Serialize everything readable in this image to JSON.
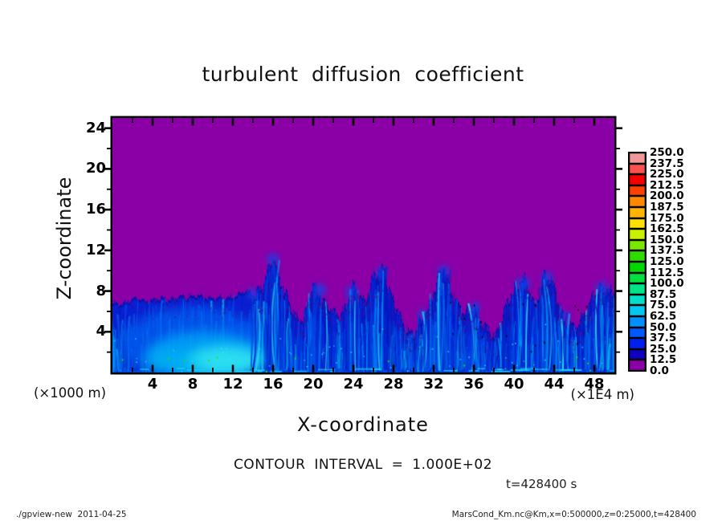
{
  "figure": {
    "title": "turbulent diffusion coefficient",
    "contour_note": "CONTOUR INTERVAL = 1.000E+02",
    "time_label": "t=428400 s",
    "footer_left": "./gpview-new  2011-04-25",
    "footer_right": "MarsCond_Km.nc@Km,x=0:500000,z=0:25000,t=428400"
  },
  "axes": {
    "x": {
      "label": "X-coordinate",
      "unit_label": "(×1E4 m)",
      "min": 0,
      "max": 50,
      "major_ticks": [
        4,
        8,
        12,
        16,
        20,
        24,
        28,
        32,
        36,
        40,
        44,
        48
      ],
      "minor_step": 2
    },
    "z": {
      "label": "Z-coordinate",
      "unit_label": "(×1000 m)",
      "min": 0,
      "max": 25,
      "major_ticks": [
        4,
        8,
        12,
        16,
        20,
        24
      ],
      "minor_step": 2
    }
  },
  "colorbar": {
    "labels_top_to_bottom": [
      "250.0",
      "237.5",
      "225.0",
      "212.5",
      "200.0",
      "187.5",
      "175.0",
      "162.5",
      "150.0",
      "137.5",
      "125.0",
      "112.5",
      "100.0",
      "87.5",
      "75.0",
      "62.5",
      "50.0",
      "37.5",
      "25.0",
      "12.5",
      "0.0"
    ],
    "colors_top_to_bottom": [
      "#f09898",
      "#ff5050",
      "#f80000",
      "#ff4000",
      "#ff8800",
      "#ffb400",
      "#ffe000",
      "#c8f000",
      "#78e800",
      "#30dc00",
      "#00d800",
      "#00e040",
      "#00e488",
      "#00e0c8",
      "#00c8f0",
      "#0090ff",
      "#0058ff",
      "#0020f0",
      "#1000c0",
      "#8a00a6"
    ]
  },
  "chart_data": {
    "type": "heatmap",
    "title": "turbulent diffusion coefficient",
    "xlabel": "X-coordinate",
    "ylabel": "Z-coordinate",
    "x_range_m": [
      0,
      500000
    ],
    "z_range_m": [
      0,
      25000
    ],
    "time_s": 428400,
    "contour_interval": 100,
    "value_min": 0.0,
    "value_max": 250.0,
    "level_step": 12.5,
    "field_description": "Turbulent diffusion coefficient near zero (purple) above z≈8×1000 m; convective boundary layer below with blue turbulent plumes and cyan high-diffusivity cores; smooth strong blob at x≈4-14, ragged plumes further right.",
    "boundary_layer_top_z": [
      6.6,
      6.9,
      7.1,
      7.2,
      7.0,
      7.3,
      7.1,
      7.4,
      7.5,
      7.3,
      7.4,
      7.2,
      7.5,
      7.8,
      7.9,
      8.3,
      11.6,
      8.0,
      5.8,
      5.2,
      8.6,
      7.0,
      5.5,
      6.3,
      8.4,
      7.0,
      9.2,
      10.3,
      6.8,
      4.5,
      3.8,
      5.2,
      8.2,
      10.4,
      7.4,
      5.5,
      6.6,
      4.2,
      3.7,
      5.8,
      8.2,
      9.2,
      6.4,
      9.8,
      8.2,
      5.2,
      4.1,
      6.1,
      7.5,
      8.8,
      7.2
    ],
    "boundary_x_step": 1,
    "plumes": [
      {
        "x": 13.9,
        "top": 8.2,
        "w": 0.9
      },
      {
        "x": 16.0,
        "top": 11.6,
        "w": 1.3
      },
      {
        "x": 20.6,
        "top": 8.6,
        "w": 1.5
      },
      {
        "x": 23.9,
        "top": 8.4,
        "w": 1.2
      },
      {
        "x": 26.8,
        "top": 10.3,
        "w": 1.1
      },
      {
        "x": 30.9,
        "top": 6.2,
        "w": 0.8
      },
      {
        "x": 33.0,
        "top": 10.4,
        "w": 1.3
      },
      {
        "x": 36.1,
        "top": 6.8,
        "w": 1.0
      },
      {
        "x": 40.9,
        "top": 9.2,
        "w": 1.6
      },
      {
        "x": 43.3,
        "top": 9.8,
        "w": 1.2
      },
      {
        "x": 45.1,
        "top": 6.0,
        "w": 0.8
      },
      {
        "x": 48.8,
        "top": 8.8,
        "w": 1.4
      }
    ],
    "smooth_blobs": [
      {
        "x": 8.0,
        "z": 3.0,
        "rx": 7.0,
        "rz": 3.4,
        "color": "#0060f0",
        "alpha": 0.75
      },
      {
        "x": 9.2,
        "z": 1.8,
        "rx": 5.8,
        "rz": 2.2,
        "color": "#00aaf8",
        "alpha": 0.8
      },
      {
        "x": 11.2,
        "z": 1.2,
        "rx": 3.8,
        "rz": 1.4,
        "color": "#30e4f0",
        "alpha": 0.9
      },
      {
        "x": 6.0,
        "z": 1.0,
        "rx": 3.0,
        "rz": 1.2,
        "color": "#00c0f0",
        "alpha": 0.5
      }
    ],
    "palette": {
      "background": "#8a00a6",
      "layer_base": "#0a1ed2",
      "layer_edge": "#0010a0",
      "strand_colors": [
        "#0018c0",
        "#0034e0",
        "#0055f0",
        "#0080f8",
        "#00aaf8",
        "#00d8e8"
      ],
      "plume_strand_colors": [
        "#0020c8",
        "#0048e8",
        "#00a0f8",
        "#30d8f0"
      ],
      "speck_colors": {
        "maroon": "#4a0468",
        "purple": "#6a0890",
        "cyan": "#40f0f0",
        "green": "#22e000",
        "black": "#000000"
      }
    },
    "seed": 7
  }
}
